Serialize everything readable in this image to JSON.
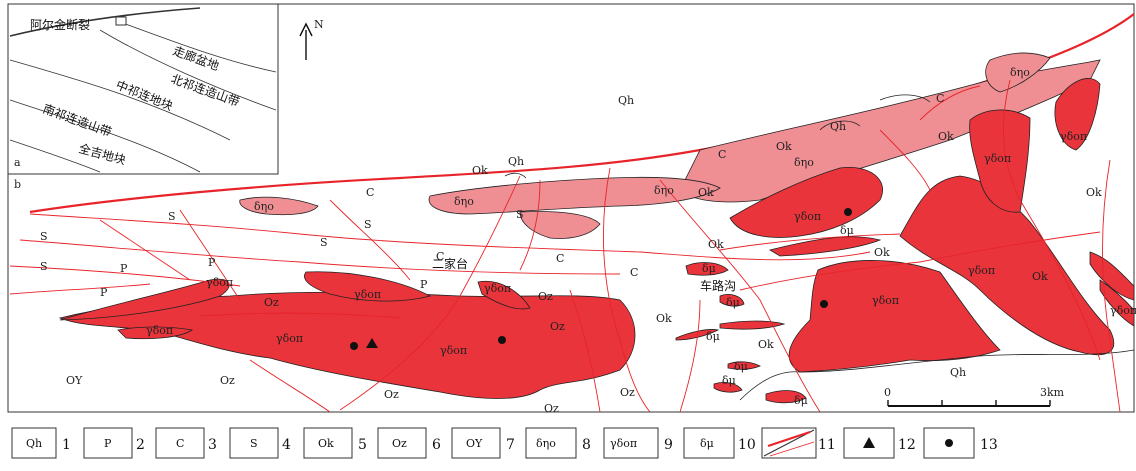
{
  "panel_labels": {
    "a": "a",
    "b": "b"
  },
  "inset": {
    "labels": [
      "阿尔金断裂",
      "走廊盆地",
      "北祁连造山带",
      "中祁连地块",
      "南祁连造山带",
      "全吉地块"
    ]
  },
  "north_arrow": "N",
  "place_names": [
    "二家台",
    "车路沟"
  ],
  "map_labels": {
    "Qh": "Qh",
    "P": "P",
    "C": "C",
    "S": "S",
    "Ok": "Ok",
    "Oz": "Oz",
    "OY": "OY",
    "dmo": "δηο",
    "gdop": "γδοπ",
    "dm": "δμ"
  },
  "scale_bar": {
    "zero": "0",
    "end": "3km"
  },
  "legend": [
    {
      "symbol": "Qh",
      "number": "1"
    },
    {
      "symbol": "P",
      "number": "2"
    },
    {
      "symbol": "C",
      "number": "3"
    },
    {
      "symbol": "S",
      "number": "4"
    },
    {
      "symbol": "Ok",
      "number": "5"
    },
    {
      "symbol": "Oz",
      "number": "6"
    },
    {
      "symbol": "OY",
      "number": "7"
    },
    {
      "symbol": "δηο",
      "number": "8"
    },
    {
      "symbol": "γδοπ",
      "number": "9"
    },
    {
      "symbol": "δμ",
      "number": "10"
    },
    {
      "symbol": "fault-lines",
      "number": "11"
    },
    {
      "symbol": "triangle",
      "number": "12"
    },
    {
      "symbol": "dot",
      "number": "13"
    }
  ],
  "colors": {
    "intrusion_dark": "#e8343a",
    "intrusion_light": "#ef8f94",
    "fault": "#e8242a",
    "outline": "#222222"
  }
}
